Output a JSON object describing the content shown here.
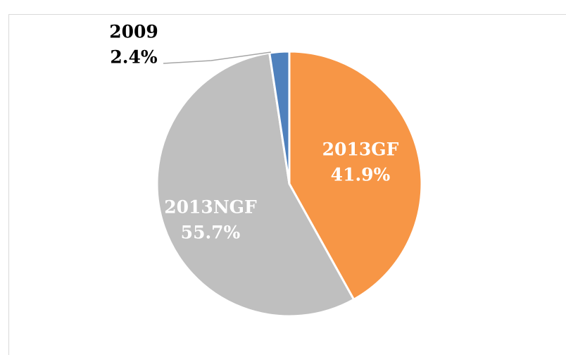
{
  "chart_data": {
    "type": "pie",
    "categories": [
      "2013GF",
      "2013NGF",
      "2009"
    ],
    "values": [
      41.9,
      55.7,
      2.4
    ],
    "value_labels": [
      "41.9%",
      "55.7%",
      "2.4%"
    ],
    "colors": [
      "#f79646",
      "#bfbfbf",
      "#4f81bd"
    ]
  }
}
